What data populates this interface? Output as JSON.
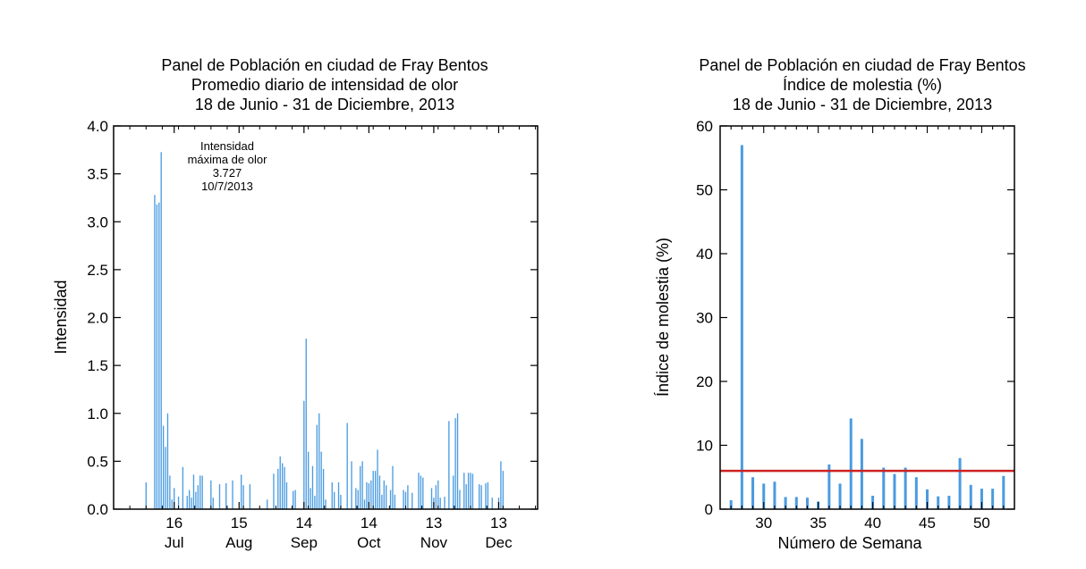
{
  "chart_data": [
    {
      "type": "bar",
      "title": [
        "Panel de Población en ciudad de Fray Bentos",
        "Promedio diario de intensidad de olor",
        "18 de Junio - 31 de Diciembre, 2013"
      ],
      "xlabel": "",
      "ylabel": "Intensidad",
      "ylim": [
        0,
        4.0
      ],
      "xlim": [
        "2013-06-18",
        "2013-12-31"
      ],
      "yticks": [
        "0.0",
        "0.5",
        "1.0",
        "1.5",
        "2.0",
        "2.5",
        "3.0",
        "3.5",
        "4.0"
      ],
      "xticks": [
        {
          "date": "2013-07-16",
          "day": "16",
          "month": "Jul"
        },
        {
          "date": "2013-08-15",
          "day": "15",
          "month": "Aug"
        },
        {
          "date": "2013-09-14",
          "day": "14",
          "month": "Sep"
        },
        {
          "date": "2013-10-14",
          "day": "14",
          "month": "Oct"
        },
        {
          "date": "2013-11-13",
          "day": "13",
          "month": "Nov"
        },
        {
          "date": "2013-12-13",
          "day": "13",
          "month": "Dec"
        }
      ],
      "annotation": [
        "Intensidad",
        "máxima de olor",
        "3.727",
        "10/7/2013"
      ],
      "bar_color": "#4a9be0",
      "series": [
        {
          "points": [
            [
              "2013-07-03",
              0.28
            ],
            [
              "2013-07-07",
              3.28
            ],
            [
              "2013-07-08",
              3.18
            ],
            [
              "2013-07-09",
              3.2
            ],
            [
              "2013-07-10",
              3.727
            ],
            [
              "2013-07-11",
              0.87
            ],
            [
              "2013-07-12",
              0.65
            ],
            [
              "2013-07-13",
              1.0
            ],
            [
              "2013-07-14",
              0.35
            ],
            [
              "2013-07-15",
              0.1
            ],
            [
              "2013-07-16",
              0.22
            ],
            [
              "2013-07-18",
              0.13
            ],
            [
              "2013-07-20",
              0.44
            ],
            [
              "2013-07-22",
              0.14
            ],
            [
              "2013-07-23",
              0.2
            ],
            [
              "2013-07-24",
              0.12
            ],
            [
              "2013-07-25",
              0.36
            ],
            [
              "2013-07-26",
              0.18
            ],
            [
              "2013-07-27",
              0.25
            ],
            [
              "2013-07-28",
              0.35
            ],
            [
              "2013-07-29",
              0.35
            ],
            [
              "2013-08-02",
              0.3
            ],
            [
              "2013-08-03",
              0.12
            ],
            [
              "2013-08-06",
              0.26
            ],
            [
              "2013-08-09",
              0.27
            ],
            [
              "2013-08-12",
              0.3
            ],
            [
              "2013-08-16",
              0.36
            ],
            [
              "2013-08-17",
              0.25
            ],
            [
              "2013-08-20",
              0.26
            ],
            [
              "2013-08-28",
              0.1
            ],
            [
              "2013-08-31",
              0.37
            ],
            [
              "2013-09-02",
              0.42
            ],
            [
              "2013-09-03",
              0.55
            ],
            [
              "2013-09-04",
              0.48
            ],
            [
              "2013-09-05",
              0.44
            ],
            [
              "2013-09-06",
              0.28
            ],
            [
              "2013-09-09",
              0.19
            ],
            [
              "2013-09-10",
              0.2
            ],
            [
              "2013-09-14",
              1.13
            ],
            [
              "2013-09-15",
              1.78
            ],
            [
              "2013-09-16",
              0.6
            ],
            [
              "2013-09-17",
              0.22
            ],
            [
              "2013-09-18",
              0.45
            ],
            [
              "2013-09-19",
              0.14
            ],
            [
              "2013-09-20",
              0.88
            ],
            [
              "2013-09-21",
              1.0
            ],
            [
              "2013-09-22",
              0.6
            ],
            [
              "2013-09-23",
              0.42
            ],
            [
              "2013-09-24",
              0.1
            ],
            [
              "2013-09-27",
              0.28
            ],
            [
              "2013-09-28",
              0.18
            ],
            [
              "2013-09-30",
              0.28
            ],
            [
              "2013-10-01",
              0.15
            ],
            [
              "2013-10-04",
              0.9
            ],
            [
              "2013-10-06",
              0.5
            ],
            [
              "2013-10-08",
              0.22
            ],
            [
              "2013-10-09",
              0.2
            ],
            [
              "2013-10-10",
              0.45
            ],
            [
              "2013-10-11",
              0.5
            ],
            [
              "2013-10-12",
              0.1
            ],
            [
              "2013-10-13",
              0.28
            ],
            [
              "2013-10-14",
              0.27
            ],
            [
              "2013-10-15",
              0.3
            ],
            [
              "2013-10-16",
              0.4
            ],
            [
              "2013-10-17",
              0.4
            ],
            [
              "2013-10-18",
              0.62
            ],
            [
              "2013-10-19",
              0.35
            ],
            [
              "2013-10-20",
              0.15
            ],
            [
              "2013-10-21",
              0.3
            ],
            [
              "2013-10-22",
              0.25
            ],
            [
              "2013-10-24",
              0.2
            ],
            [
              "2013-10-25",
              0.45
            ],
            [
              "2013-10-26",
              0.15
            ],
            [
              "2013-10-30",
              0.2
            ],
            [
              "2013-10-31",
              0.18
            ],
            [
              "2013-11-01",
              0.25
            ],
            [
              "2013-11-03",
              0.17
            ],
            [
              "2013-11-06",
              0.38
            ],
            [
              "2013-11-07",
              0.35
            ],
            [
              "2013-11-08",
              0.33
            ],
            [
              "2013-11-12",
              0.22
            ],
            [
              "2013-11-13",
              0.12
            ],
            [
              "2013-11-14",
              0.25
            ],
            [
              "2013-11-15",
              0.3
            ],
            [
              "2013-11-16",
              0.12
            ],
            [
              "2013-11-18",
              0.13
            ],
            [
              "2013-11-20",
              0.92
            ],
            [
              "2013-11-22",
              0.35
            ],
            [
              "2013-11-23",
              0.95
            ],
            [
              "2013-11-24",
              1.0
            ],
            [
              "2013-11-25",
              0.2
            ],
            [
              "2013-11-27",
              0.38
            ],
            [
              "2013-11-28",
              0.26
            ],
            [
              "2013-11-29",
              0.38
            ],
            [
              "2013-11-30",
              0.38
            ],
            [
              "2013-12-01",
              0.37
            ],
            [
              "2013-12-04",
              0.26
            ],
            [
              "2013-12-05",
              0.25
            ],
            [
              "2013-12-07",
              0.27
            ],
            [
              "2013-12-08",
              0.28
            ],
            [
              "2013-12-10",
              0.12
            ],
            [
              "2013-12-13",
              0.12
            ],
            [
              "2013-12-14",
              0.5
            ],
            [
              "2013-12-15",
              0.4
            ]
          ]
        }
      ]
    },
    {
      "type": "bar",
      "title": [
        "Panel de Población en ciudad de Fray Bentos",
        "Índice de molestia (%)",
        "18 de Junio - 31 de Diciembre, 2013"
      ],
      "xlabel": "Número de Semana",
      "ylabel": "Índice de molestia (%)",
      "xlim": [
        26,
        53
      ],
      "ylim": [
        0,
        60
      ],
      "xticks": [
        30,
        35,
        40,
        45,
        50
      ],
      "yticks": [
        0,
        10,
        20,
        30,
        40,
        50,
        60
      ],
      "threshold": 6,
      "threshold_color": "#cc2222",
      "bar_color": "#4a9be0",
      "series": [
        {
          "x": [
            27,
            28,
            29,
            30,
            31,
            32,
            33,
            34,
            35,
            36,
            37,
            38,
            39,
            40,
            41,
            42,
            43,
            44,
            45,
            46,
            47,
            48,
            49,
            50,
            51,
            52
          ],
          "values": [
            1.4,
            57.0,
            5.0,
            4.0,
            4.3,
            1.9,
            1.9,
            1.8,
            1.2,
            7.0,
            4.0,
            14.2,
            11.0,
            2.1,
            6.5,
            5.5,
            6.5,
            5.0,
            3.1,
            2.0,
            2.1,
            8.0,
            3.8,
            3.2,
            3.2,
            5.2
          ]
        }
      ]
    }
  ]
}
